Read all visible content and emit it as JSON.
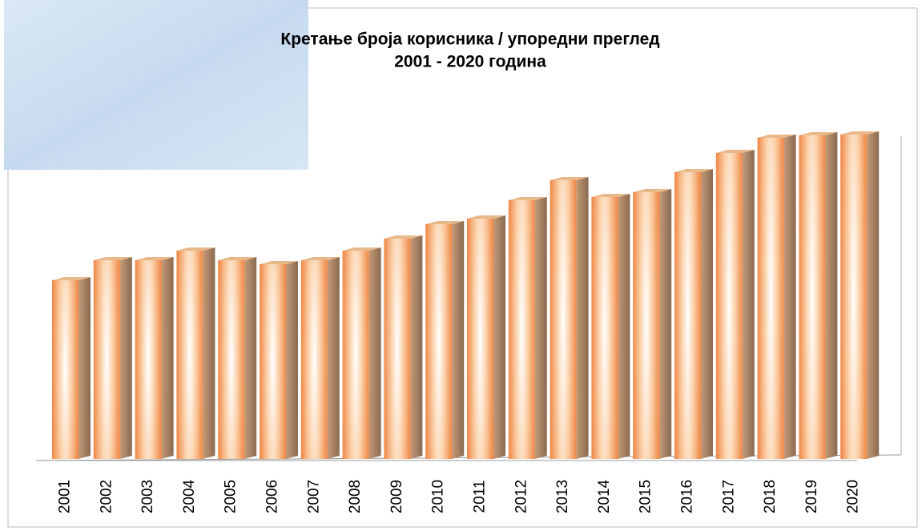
{
  "chart_data": {
    "type": "bar3d",
    "title_lines": [
      "Кретање броја корисника / упоредни преглед",
      "2001 - 2020 година"
    ],
    "categories": [
      "2001",
      "2002",
      "2003",
      "2004",
      "2005",
      "2006",
      "2007",
      "2008",
      "2009",
      "2010",
      "2011",
      "2012",
      "2013",
      "2014",
      "2015",
      "2016",
      "2017",
      "2018",
      "2019",
      "2020"
    ],
    "values": [
      223,
      248,
      248,
      260,
      248,
      243,
      248,
      260,
      275,
      293,
      300,
      323,
      348,
      327,
      333,
      358,
      382,
      401,
      404,
      405
    ],
    "color": "#f2a66a"
  }
}
